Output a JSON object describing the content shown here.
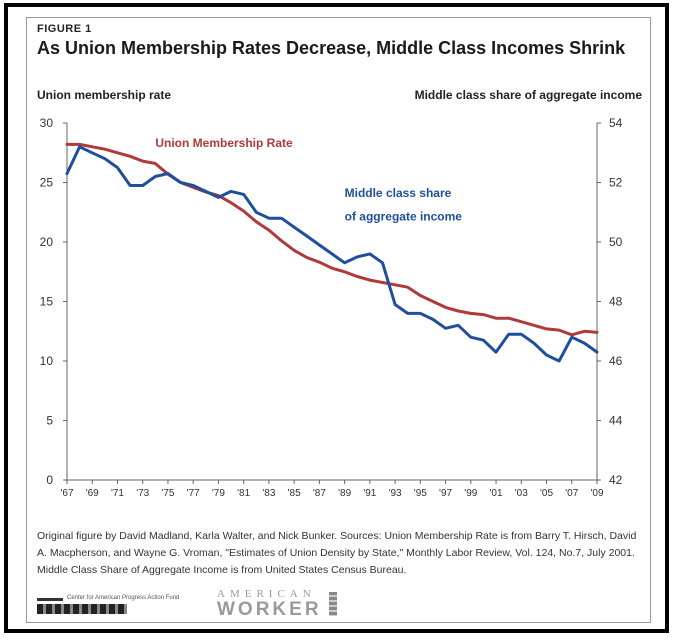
{
  "figure_label": "FIGURE 1",
  "title": "As Union Membership Rates Decrease, Middle Class Incomes Shrink",
  "left_axis_label": "Union membership rate",
  "right_axis_label": "Middle class share of aggregate income",
  "source_note": "Original figure by David Madland, Karla Walter, and Nick Bunker. Sources: Union Membership Rate is from Barry T. Hirsch, David A. Macpherson, and Wayne G. Vroman, \"Estimates of Union Density by State,\" Monthly Labor Review, Vol. 124, No.7, July 2001. Middle Class Share of Aggregate Income is from United States Census Bureau.",
  "logo_left_text": "Center for American Progress Action Fund",
  "logo_right_line1": "AMERICAN",
  "logo_right_line2": "WORKER",
  "colors": {
    "union": "#b03a3a",
    "middle_class": "#1f4f9c"
  },
  "chart_data": {
    "type": "line",
    "title": "As Union Membership Rates Decrease, Middle Class Incomes Shrink",
    "xlabel": "",
    "ylabel_left": "Union membership rate",
    "ylabel_right": "Middle class share of aggregate income",
    "xlim": [
      1967,
      2009
    ],
    "ylim_left": [
      0,
      30
    ],
    "ylim_right": [
      42,
      54
    ],
    "yticks_left": [
      0,
      5,
      10,
      15,
      20,
      25,
      30
    ],
    "yticks_right": [
      42,
      44,
      46,
      48,
      50,
      52,
      54
    ],
    "xtick_labels": [
      "'67",
      "'69",
      "'71",
      "'73",
      "'75",
      "'77",
      "'79",
      "'81",
      "'83",
      "'85",
      "'87",
      "'89",
      "'91",
      "'93",
      "'95",
      "'97",
      "'99",
      "'01",
      "'03",
      "'05",
      "'07",
      "'09"
    ],
    "xtick_years": [
      1967,
      1969,
      1971,
      1973,
      1975,
      1977,
      1979,
      1981,
      1983,
      1985,
      1987,
      1989,
      1991,
      1993,
      1995,
      1997,
      1999,
      2001,
      2003,
      2005,
      2007,
      2009
    ],
    "grid": false,
    "annotations": [
      {
        "text": "Union Membership Rate",
        "series": "union",
        "x": 1974,
        "y_left": 28.0
      },
      {
        "text": "Middle class share",
        "series": "middle_class",
        "x": 1989,
        "y_left": 23.8
      },
      {
        "text": "of aggregate income",
        "series": "middle_class",
        "x": 1989,
        "y_left": 21.8
      }
    ],
    "series": [
      {
        "name": "Union Membership Rate",
        "axis": "left",
        "x": [
          1967,
          1968,
          1969,
          1970,
          1971,
          1972,
          1973,
          1974,
          1975,
          1976,
          1977,
          1978,
          1979,
          1980,
          1981,
          1982,
          1983,
          1984,
          1985,
          1986,
          1987,
          1988,
          1989,
          1990,
          1991,
          1992,
          1993,
          1994,
          1995,
          1996,
          1997,
          1998,
          1999,
          2000,
          2001,
          2002,
          2003,
          2004,
          2005,
          2006,
          2007,
          2008,
          2009
        ],
        "values": [
          28.2,
          28.2,
          28.0,
          27.8,
          27.5,
          27.2,
          26.8,
          26.6,
          25.7,
          25.0,
          24.6,
          24.2,
          23.9,
          23.3,
          22.6,
          21.7,
          21.0,
          20.1,
          19.3,
          18.7,
          18.3,
          17.8,
          17.5,
          17.1,
          16.8,
          16.6,
          16.4,
          16.2,
          15.5,
          15.0,
          14.5,
          14.2,
          14.0,
          13.9,
          13.6,
          13.6,
          13.3,
          13.0,
          12.7,
          12.6,
          12.2,
          12.5,
          12.4
        ]
      },
      {
        "name": "Middle class share of aggregate income",
        "axis": "right",
        "x": [
          1967,
          1968,
          1969,
          1970,
          1971,
          1972,
          1973,
          1974,
          1975,
          1976,
          1977,
          1978,
          1979,
          1980,
          1981,
          1982,
          1983,
          1984,
          1985,
          1986,
          1987,
          1988,
          1989,
          1990,
          1991,
          1992,
          1993,
          1994,
          1995,
          1996,
          1997,
          1998,
          1999,
          2000,
          2001,
          2002,
          2003,
          2004,
          2005,
          2006,
          2007,
          2008,
          2009
        ],
        "values": [
          52.3,
          53.2,
          53.0,
          52.8,
          52.5,
          51.9,
          51.9,
          52.2,
          52.3,
          52.0,
          51.9,
          51.7,
          51.5,
          51.7,
          51.6,
          51.0,
          50.8,
          50.8,
          50.5,
          50.2,
          49.9,
          49.6,
          49.3,
          49.5,
          49.6,
          49.3,
          47.9,
          47.6,
          47.6,
          47.4,
          47.1,
          47.2,
          46.8,
          46.7,
          46.3,
          46.9,
          46.9,
          46.6,
          46.2,
          46.0,
          46.8,
          46.6,
          46.3
        ]
      }
    ]
  }
}
